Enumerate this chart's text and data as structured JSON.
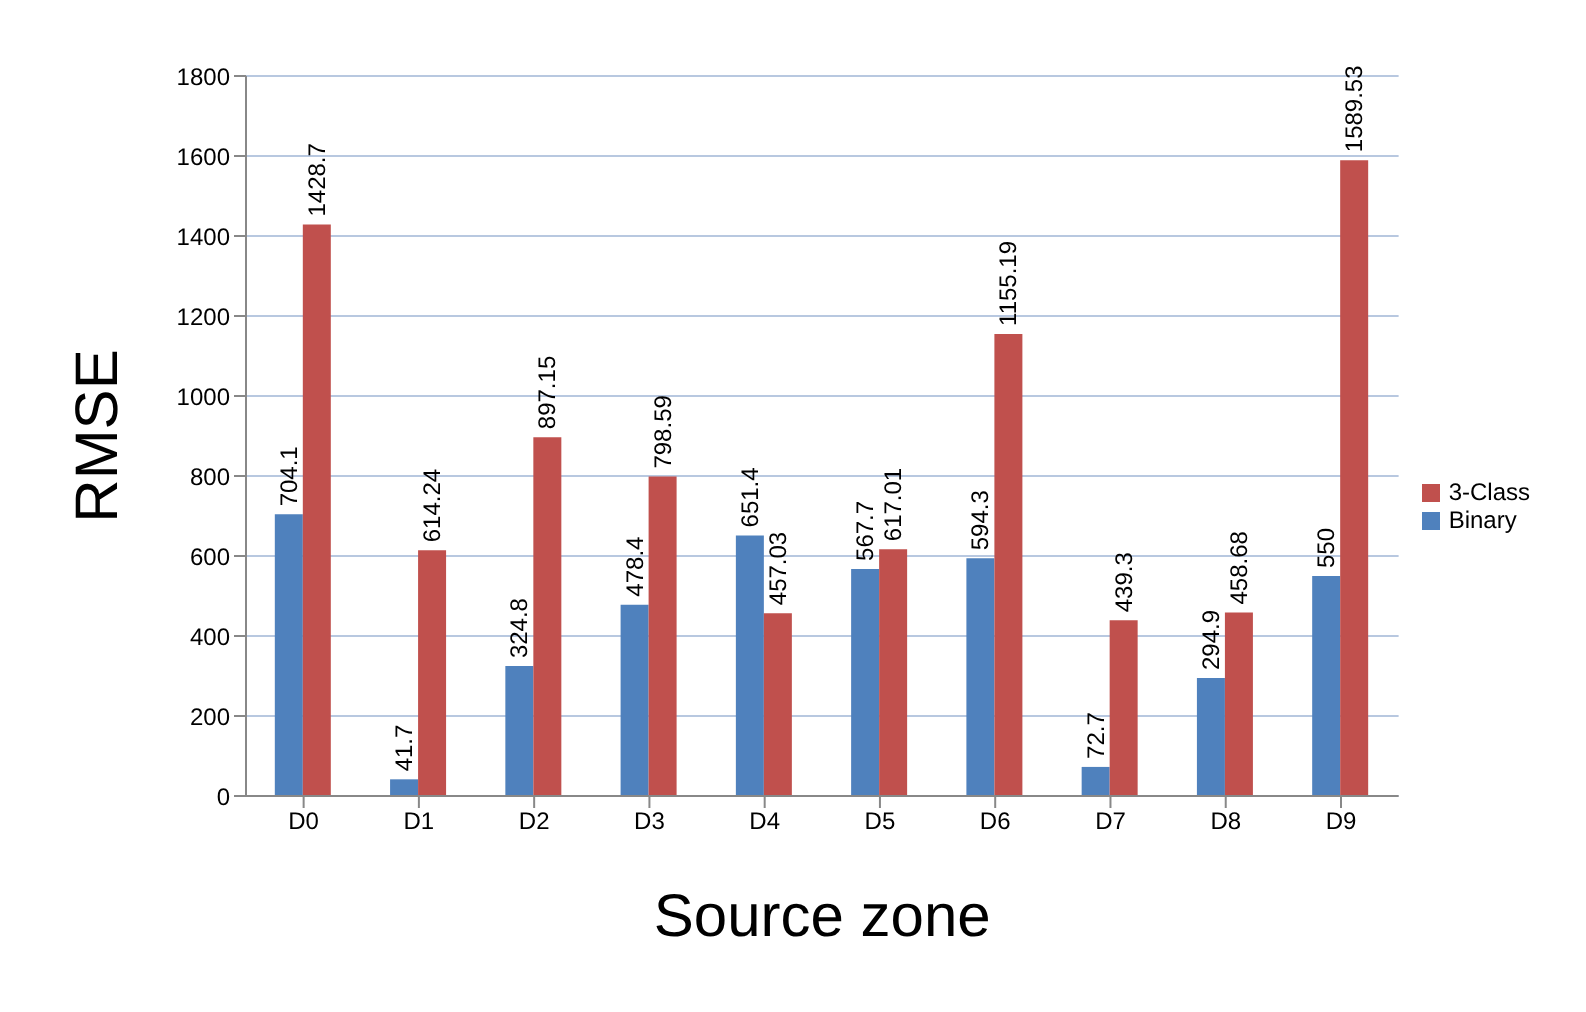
{
  "chart_data": {
    "type": "bar",
    "xlabel": "Source zone",
    "ylabel": "RMSE",
    "categories": [
      "D0",
      "D1",
      "D2",
      "D3",
      "D4",
      "D5",
      "D6",
      "D7",
      "D8",
      "D9"
    ],
    "series": [
      {
        "name": "Binary",
        "color": "#4f81bd",
        "values": [
          704.1,
          41.7,
          324.8,
          478.4,
          651.4,
          567.7,
          594.3,
          72.7,
          294.9,
          550
        ]
      },
      {
        "name": "3-Class",
        "color": "#c0504d",
        "values": [
          1428.7,
          614.24,
          897.15,
          798.59,
          457.03,
          617.01,
          1155.19,
          439.3,
          458.68,
          1589.53
        ]
      }
    ],
    "ylim": [
      0,
      1800
    ],
    "yticks": [
      0,
      200,
      400,
      600,
      800,
      1000,
      1200,
      1400,
      1600,
      1800
    ],
    "grid": "y",
    "legend": "right",
    "data_labels": true
  }
}
